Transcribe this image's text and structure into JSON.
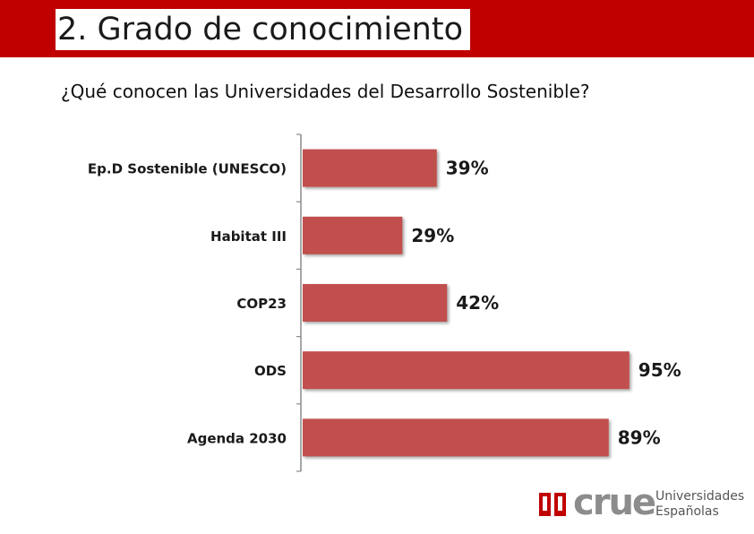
{
  "header": {
    "title": "2. Grado de conocimiento",
    "color": "#c00000"
  },
  "question": "¿Qué conocen las Universidades  del Desarrollo Sostenible?",
  "chart_data": {
    "type": "bar",
    "orientation": "horizontal",
    "categories": [
      "Ep.D Sostenible (UNESCO)",
      "Habitat III",
      "COP23",
      "ODS",
      "Agenda 2030"
    ],
    "values": [
      39,
      29,
      42,
      95,
      89
    ],
    "value_labels": [
      "39%",
      "29%",
      "42%",
      "95%",
      "89%"
    ],
    "unit": "%",
    "xlim": [
      0,
      100
    ],
    "bar_color": "#c0504d",
    "title": "",
    "xlabel": "",
    "ylabel": "",
    "grid": false,
    "legend": "none"
  },
  "logo": {
    "name": "crue",
    "line1": "Universidades",
    "line2": "Españolas",
    "mark_color": "#c00000"
  }
}
